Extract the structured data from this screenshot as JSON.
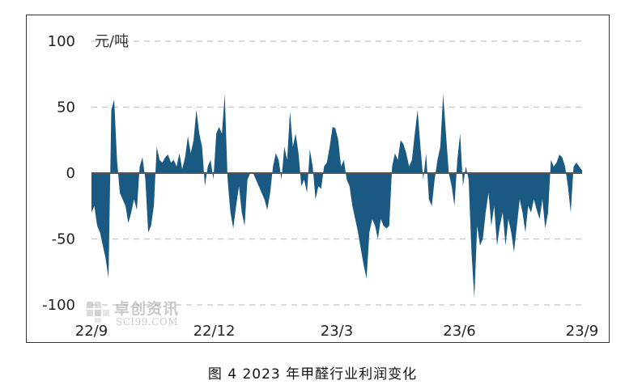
{
  "chart_data": {
    "type": "area",
    "title": "",
    "ylabel": "元/吨",
    "xlabel": "",
    "ylim": [
      -100,
      100
    ],
    "yticks": [
      100,
      50,
      0,
      -50,
      -100
    ],
    "grid": "horizontal dashed",
    "x_tick_labels": [
      "22/9",
      "22/12",
      "23/3",
      "23/6",
      "23/9"
    ],
    "fill_color": "#1a5a82",
    "zero_line_color": "#555555",
    "series": [
      {
        "values": [
          -30,
          -25,
          -40,
          -45,
          -55,
          -65,
          -80,
          48,
          56,
          10,
          -15,
          -20,
          -25,
          -38,
          -30,
          -20,
          -28,
          5,
          12,
          -5,
          -45,
          -40,
          -25,
          20,
          10,
          8,
          12,
          14,
          8,
          10,
          5,
          15,
          3,
          12,
          28,
          15,
          25,
          48,
          30,
          20,
          -10,
          5,
          10,
          -5,
          30,
          35,
          30,
          60,
          -5,
          -30,
          -42,
          -25,
          -10,
          -30,
          -40,
          -5,
          0,
          0,
          -5,
          -10,
          -15,
          -20,
          -28,
          -15,
          5,
          15,
          10,
          -5,
          20,
          10,
          47,
          20,
          30,
          15,
          -10,
          -5,
          -15,
          18,
          5,
          -20,
          -10,
          -12,
          5,
          8,
          20,
          35,
          34,
          25,
          5,
          10,
          -5,
          -10,
          -25,
          -35,
          -45,
          -58,
          -70,
          -80,
          -45,
          -35,
          -40,
          -50,
          -35,
          -40,
          -42,
          -40,
          5,
          15,
          10,
          25,
          22,
          15,
          5,
          10,
          30,
          48,
          20,
          -5,
          15,
          -20,
          -25,
          -5,
          10,
          20,
          60,
          30,
          0,
          -10,
          -25,
          10,
          30,
          -10,
          5,
          -5,
          -60,
          -95,
          -40,
          -55,
          -50,
          -30,
          -15,
          -40,
          -25,
          -55,
          -40,
          -30,
          -55,
          -35,
          -45,
          -60,
          -40,
          -20,
          -30,
          -45,
          -25,
          -30,
          -20,
          -28,
          -35,
          -20,
          -42,
          -30,
          10,
          5,
          8,
          14,
          12,
          5,
          -10,
          -30,
          5,
          8,
          5,
          2
        ]
      }
    ]
  },
  "caption": "图 4  2023 年甲醛行业利润变化",
  "watermark": {
    "main": "卓创资讯",
    "sub": "SCI99.COM"
  }
}
